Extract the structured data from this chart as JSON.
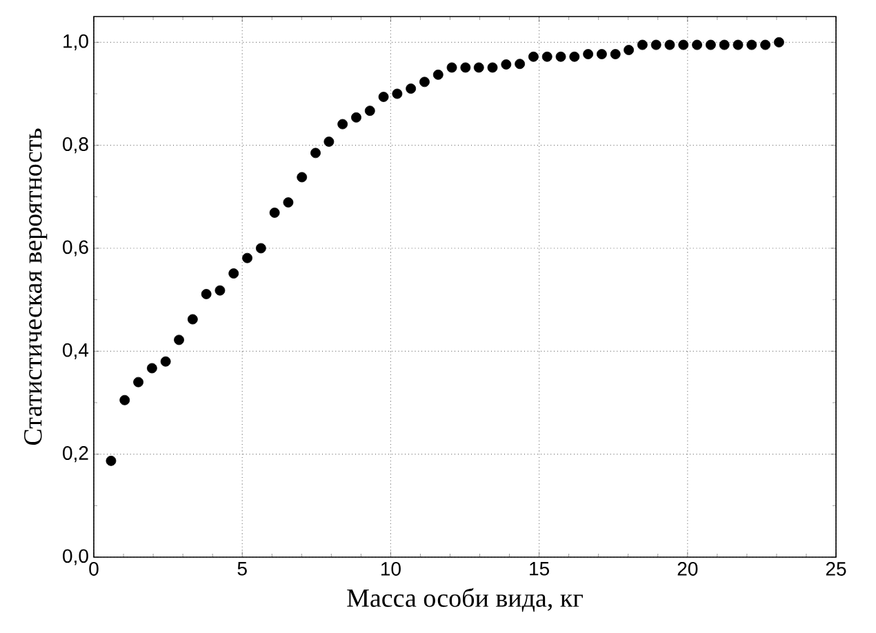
{
  "chart_data": {
    "type": "scatter",
    "xlabel": "Масса особи вида, кг",
    "ylabel": "Статистическая вероятность",
    "x": [
      0.58,
      1.04,
      1.5,
      1.96,
      2.42,
      2.87,
      3.33,
      3.79,
      4.25,
      4.71,
      5.17,
      5.63,
      6.09,
      6.55,
      7.01,
      7.47,
      7.92,
      8.38,
      8.84,
      9.3,
      9.76,
      10.22,
      10.68,
      11.14,
      11.6,
      12.06,
      12.52,
      12.97,
      13.43,
      13.89,
      14.35,
      14.81,
      15.27,
      15.73,
      16.19,
      16.65,
      17.11,
      17.57,
      18.02,
      18.48,
      18.94,
      19.4,
      19.86,
      20.32,
      20.78,
      21.24,
      21.7,
      22.16,
      22.62,
      23.08
    ],
    "series": [
      {
        "color": "#000000",
        "values": [
          0.187,
          0.305,
          0.34,
          0.367,
          0.38,
          0.422,
          0.462,
          0.511,
          0.518,
          0.551,
          0.581,
          0.6,
          0.669,
          0.689,
          0.738,
          0.785,
          0.807,
          0.841,
          0.854,
          0.867,
          0.894,
          0.9,
          0.91,
          0.923,
          0.937,
          0.951,
          0.951,
          0.951,
          0.951,
          0.957,
          0.958,
          0.972,
          0.972,
          0.972,
          0.972,
          0.977,
          0.977,
          0.977,
          0.985,
          0.995,
          0.995,
          0.995,
          0.995,
          0.995,
          0.995,
          0.995,
          0.995,
          0.995,
          0.995,
          1.0
        ]
      }
    ],
    "xlim": [
      0,
      25
    ],
    "ylim": [
      0,
      1.05
    ],
    "xticks": [
      0,
      5,
      10,
      15,
      20,
      25
    ],
    "yticks": [
      {
        "value": 0,
        "label": "0,0"
      },
      {
        "value": 0.2,
        "label": "0,2"
      },
      {
        "value": 0.4,
        "label": "0,4"
      },
      {
        "value": 0.6,
        "label": "0,6"
      },
      {
        "value": 0.8,
        "label": "0,8"
      },
      {
        "value": 1.0,
        "label": "1,0"
      }
    ],
    "grid": true
  }
}
